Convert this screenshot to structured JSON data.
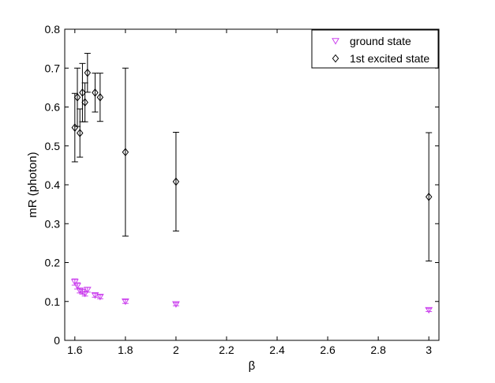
{
  "chart_data": {
    "type": "scatter",
    "title": "",
    "xlabel": "β",
    "ylabel": "mR (photon)",
    "xlim": [
      1.56,
      3.04
    ],
    "ylim": [
      0,
      0.8
    ],
    "xticks": [
      1.6,
      1.8,
      2,
      2.2,
      2.4,
      2.6,
      2.8,
      3
    ],
    "xtick_labels": [
      "1.6",
      "1.8",
      "2",
      "2.2",
      "2.4",
      "2.6",
      "2.8",
      "3"
    ],
    "yticks": [
      0,
      0.1,
      0.2,
      0.3,
      0.4,
      0.5,
      0.6,
      0.7,
      0.8
    ],
    "ytick_labels": [
      "0",
      "0.1",
      "0.2",
      "0.3",
      "0.4",
      "0.5",
      "0.6",
      "0.7",
      "0.8"
    ],
    "grid": false,
    "legend_position": "top-right",
    "series": [
      {
        "name": "ground state",
        "marker": "triangle-down",
        "color": "#cc44ee",
        "points": [
          {
            "x": 1.6,
            "y": 0.15,
            "err": 0.008
          },
          {
            "x": 1.61,
            "y": 0.14,
            "err": 0.008
          },
          {
            "x": 1.62,
            "y": 0.128,
            "err": 0.006
          },
          {
            "x": 1.63,
            "y": 0.125,
            "err": 0.006
          },
          {
            "x": 1.64,
            "y": 0.12,
            "err": 0.006
          },
          {
            "x": 1.65,
            "y": 0.13,
            "err": 0.006
          },
          {
            "x": 1.68,
            "y": 0.116,
            "err": 0.005
          },
          {
            "x": 1.7,
            "y": 0.112,
            "err": 0.005
          },
          {
            "x": 1.8,
            "y": 0.1,
            "err": 0.005
          },
          {
            "x": 2.0,
            "y": 0.093,
            "err": 0.004
          },
          {
            "x": 3.0,
            "y": 0.078,
            "err": 0.004
          }
        ]
      },
      {
        "name": "1st excited state",
        "marker": "diamond",
        "color": "#000000",
        "points": [
          {
            "x": 1.6,
            "y": 0.547,
            "err": 0.088
          },
          {
            "x": 1.61,
            "y": 0.625,
            "err": 0.075
          },
          {
            "x": 1.62,
            "y": 0.533,
            "err": 0.062
          },
          {
            "x": 1.63,
            "y": 0.637,
            "err": 0.075
          },
          {
            "x": 1.64,
            "y": 0.612,
            "err": 0.05
          },
          {
            "x": 1.65,
            "y": 0.688,
            "err": 0.05
          },
          {
            "x": 1.68,
            "y": 0.637,
            "err": 0.05
          },
          {
            "x": 1.7,
            "y": 0.625,
            "err": 0.062
          },
          {
            "x": 1.8,
            "y": 0.484,
            "err": 0.216
          },
          {
            "x": 2.0,
            "y": 0.408,
            "err": 0.127
          },
          {
            "x": 3.0,
            "y": 0.369,
            "err": 0.165
          }
        ]
      }
    ]
  }
}
